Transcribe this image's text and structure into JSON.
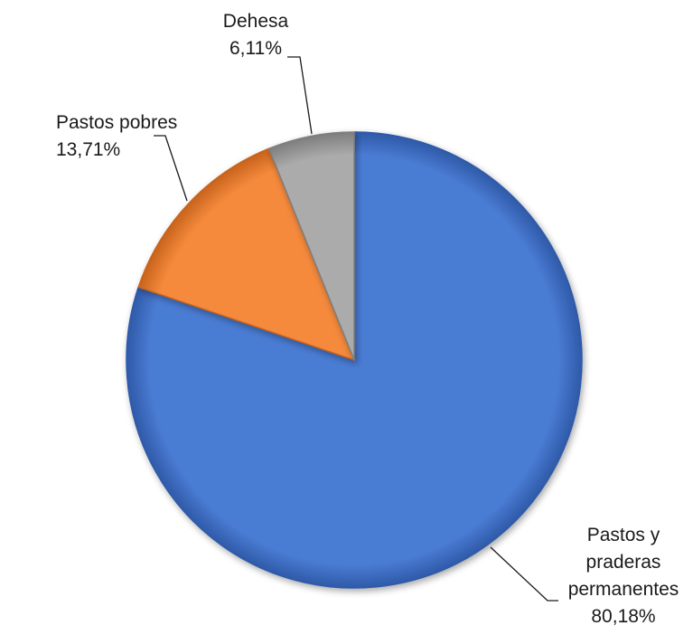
{
  "chart_data": {
    "type": "pie",
    "title": "",
    "start_angle_deg": 0,
    "direction": "clockwise",
    "slices": [
      {
        "name": "Pastos y praderas permanentes",
        "label_lines": [
          "Pastos y",
          "praderas",
          "permanentes"
        ],
        "value": 80.18,
        "value_label": "80,18%",
        "color": "#4a7bd3",
        "color_dark": "#2f5aa8"
      },
      {
        "name": "Pastos pobres",
        "label_lines": [
          "Pastos pobres"
        ],
        "value": 13.71,
        "value_label": "13,71%",
        "color": "#f58a3c",
        "color_dark": "#c8631d"
      },
      {
        "name": "Dehesa",
        "label_lines": [
          "Dehesa"
        ],
        "value": 6.11,
        "value_label": "6,11%",
        "color": "#ababab",
        "color_dark": "#7e7e7e"
      }
    ],
    "legend": "none"
  }
}
